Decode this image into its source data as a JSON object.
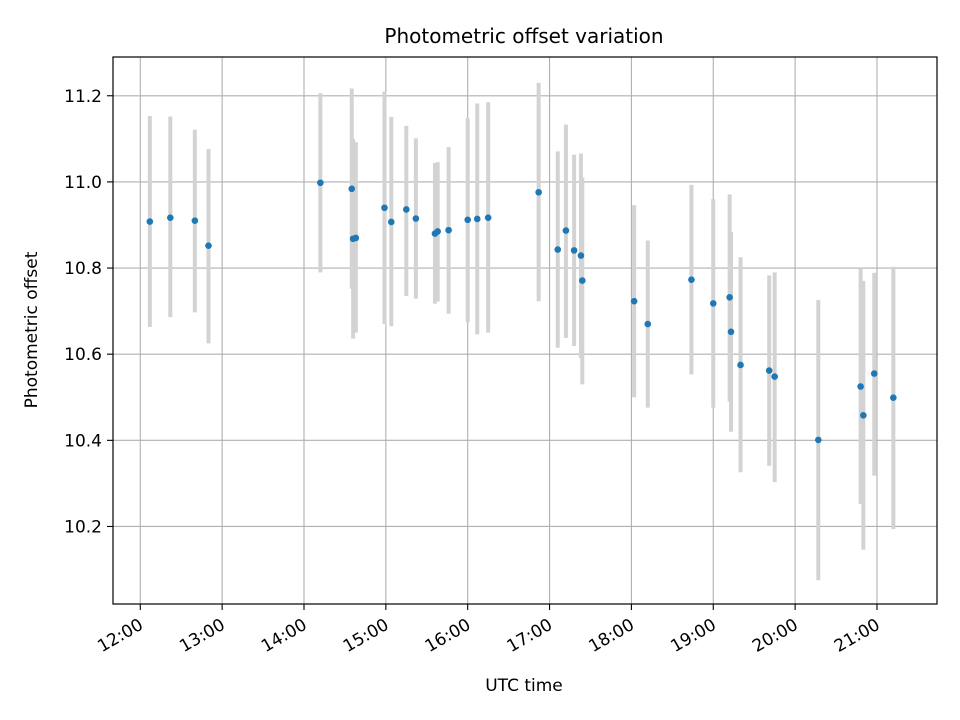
{
  "chart_data": {
    "type": "scatter",
    "title": "Photometric offset variation",
    "xlabel": "UTC time",
    "ylabel": "Photometric offset",
    "x_tick_labels": [
      "12:00",
      "13:00",
      "14:00",
      "15:00",
      "16:00",
      "17:00",
      "18:00",
      "19:00",
      "20:00",
      "21:00"
    ],
    "x_ticks": [
      "12:00",
      "13:00",
      "14:00",
      "15:00",
      "16:00",
      "17:00",
      "18:00",
      "19:00",
      "20:00",
      "21:00"
    ],
    "y_tick_labels": [
      "10.2",
      "10.4",
      "10.6",
      "10.8",
      "11.0",
      "11.2"
    ],
    "y_ticks": [
      10.2,
      10.4,
      10.6,
      10.8,
      11.0,
      11.2
    ],
    "xlim": [
      "11:40",
      "21:44"
    ],
    "ylim": [
      10.02,
      11.29
    ],
    "grid": true,
    "marker_color": "#1f77b4",
    "errorbar_color": "#d3d3d3",
    "points": [
      {
        "x": "12:07",
        "y": 10.908,
        "lo": 10.663,
        "hi": 11.153
      },
      {
        "x": "12:22",
        "y": 10.917,
        "lo": 10.686,
        "hi": 11.152
      },
      {
        "x": "12:40",
        "y": 10.91,
        "lo": 10.697,
        "hi": 11.121
      },
      {
        "x": "12:50",
        "y": 10.852,
        "lo": 10.625,
        "hi": 11.076
      },
      {
        "x": "14:12",
        "y": 10.998,
        "lo": 10.79,
        "hi": 11.206
      },
      {
        "x": "14:35",
        "y": 10.984,
        "lo": 10.752,
        "hi": 11.217
      },
      {
        "x": "14:36",
        "y": 10.868,
        "lo": 10.636,
        "hi": 11.1
      },
      {
        "x": "14:38",
        "y": 10.87,
        "lo": 10.65,
        "hi": 11.092
      },
      {
        "x": "14:59",
        "y": 10.94,
        "lo": 10.67,
        "hi": 11.21
      },
      {
        "x": "15:04",
        "y": 10.907,
        "lo": 10.665,
        "hi": 11.151
      },
      {
        "x": "15:15",
        "y": 10.936,
        "lo": 10.735,
        "hi": 11.13
      },
      {
        "x": "15:22",
        "y": 10.915,
        "lo": 10.729,
        "hi": 11.101
      },
      {
        "x": "15:36",
        "y": 10.88,
        "lo": 10.717,
        "hi": 11.044
      },
      {
        "x": "15:38",
        "y": 10.885,
        "lo": 10.722,
        "hi": 11.046
      },
      {
        "x": "15:46",
        "y": 10.888,
        "lo": 10.694,
        "hi": 11.081
      },
      {
        "x": "16:00",
        "y": 10.912,
        "lo": 10.674,
        "hi": 11.148
      },
      {
        "x": "16:07",
        "y": 10.914,
        "lo": 10.646,
        "hi": 11.182
      },
      {
        "x": "16:15",
        "y": 10.917,
        "lo": 10.65,
        "hi": 11.185
      },
      {
        "x": "16:52",
        "y": 10.976,
        "lo": 10.723,
        "hi": 11.23
      },
      {
        "x": "17:06",
        "y": 10.843,
        "lo": 10.615,
        "hi": 11.071
      },
      {
        "x": "17:12",
        "y": 10.887,
        "lo": 10.638,
        "hi": 11.133
      },
      {
        "x": "17:18",
        "y": 10.841,
        "lo": 10.619,
        "hi": 11.063
      },
      {
        "x": "17:23",
        "y": 10.829,
        "lo": 10.591,
        "hi": 11.066
      },
      {
        "x": "17:24",
        "y": 10.771,
        "lo": 10.53,
        "hi": 11.01
      },
      {
        "x": "18:02",
        "y": 10.723,
        "lo": 10.5,
        "hi": 10.946
      },
      {
        "x": "18:12",
        "y": 10.67,
        "lo": 10.476,
        "hi": 10.864
      },
      {
        "x": "18:44",
        "y": 10.773,
        "lo": 10.553,
        "hi": 10.993
      },
      {
        "x": "19:00",
        "y": 10.718,
        "lo": 10.476,
        "hi": 10.96
      },
      {
        "x": "19:12",
        "y": 10.732,
        "lo": 10.49,
        "hi": 10.971
      },
      {
        "x": "19:13",
        "y": 10.652,
        "lo": 10.42,
        "hi": 10.884
      },
      {
        "x": "19:20",
        "y": 10.575,
        "lo": 10.326,
        "hi": 10.825
      },
      {
        "x": "19:41",
        "y": 10.562,
        "lo": 10.341,
        "hi": 10.783
      },
      {
        "x": "19:45",
        "y": 10.548,
        "lo": 10.303,
        "hi": 10.79
      },
      {
        "x": "20:17",
        "y": 10.401,
        "lo": 10.075,
        "hi": 10.726
      },
      {
        "x": "20:48",
        "y": 10.525,
        "lo": 10.252,
        "hi": 10.798
      },
      {
        "x": "20:50",
        "y": 10.458,
        "lo": 10.146,
        "hi": 10.77
      },
      {
        "x": "20:58",
        "y": 10.555,
        "lo": 10.318,
        "hi": 10.789
      },
      {
        "x": "21:12",
        "y": 10.499,
        "lo": 10.194,
        "hi": 10.803
      }
    ]
  }
}
